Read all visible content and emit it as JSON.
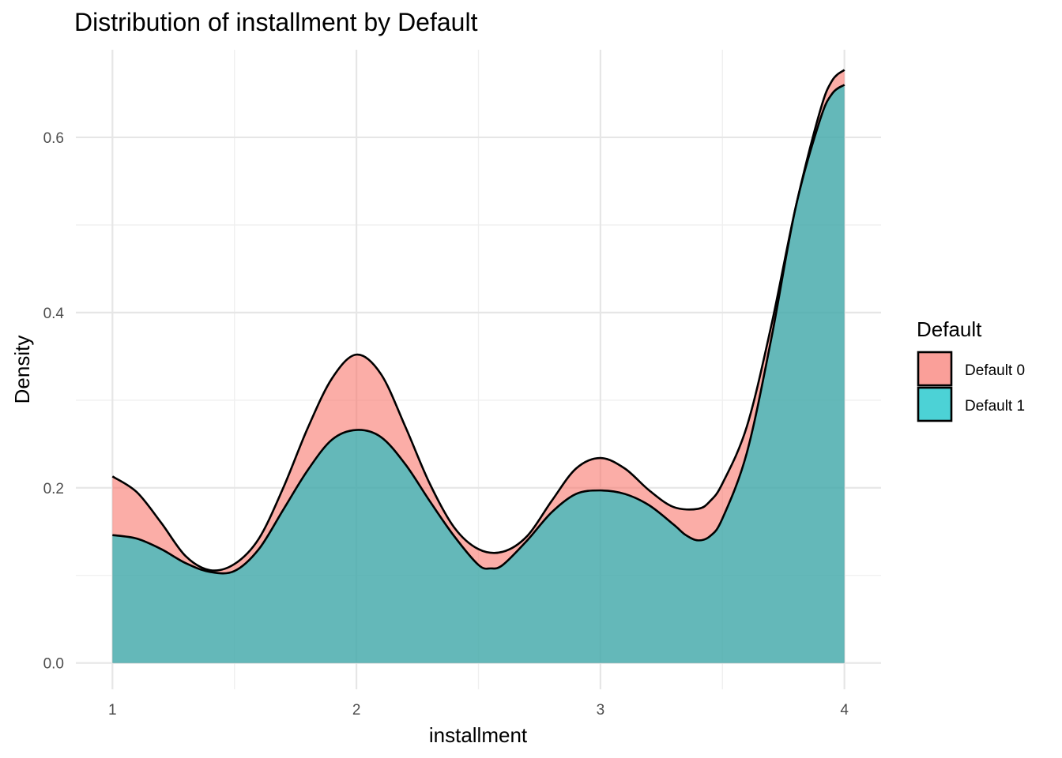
{
  "chart_data": {
    "type": "area",
    "subtype": "density",
    "title": "Distribution of installment by Default",
    "xlabel": "installment",
    "ylabel": "Density",
    "xlim": [
      0.85,
      4.15
    ],
    "ylim": [
      -0.03,
      0.7
    ],
    "x_ticks": [
      1,
      2,
      3,
      4
    ],
    "x_tick_labels": [
      "1",
      "2",
      "3",
      "4"
    ],
    "y_ticks": [
      0.0,
      0.2,
      0.4,
      0.6
    ],
    "y_tick_labels": [
      "0.0",
      "0.2",
      "0.4",
      "0.6"
    ],
    "grid": true,
    "legend": {
      "title": "Default",
      "position": "right",
      "entries": [
        "Default 0",
        "Default 1"
      ]
    },
    "series": [
      {
        "name": "Default 0",
        "color": "#F8766D",
        "fill_opacity": 0.6,
        "points": [
          [
            1.0,
            0.213
          ],
          [
            1.1,
            0.195
          ],
          [
            1.2,
            0.16
          ],
          [
            1.3,
            0.122
          ],
          [
            1.4,
            0.106
          ],
          [
            1.5,
            0.113
          ],
          [
            1.6,
            0.142
          ],
          [
            1.7,
            0.2
          ],
          [
            1.8,
            0.268
          ],
          [
            1.9,
            0.325
          ],
          [
            2.0,
            0.352
          ],
          [
            2.1,
            0.33
          ],
          [
            2.2,
            0.27
          ],
          [
            2.3,
            0.205
          ],
          [
            2.4,
            0.155
          ],
          [
            2.5,
            0.13
          ],
          [
            2.6,
            0.127
          ],
          [
            2.7,
            0.145
          ],
          [
            2.8,
            0.185
          ],
          [
            2.9,
            0.222
          ],
          [
            3.0,
            0.234
          ],
          [
            3.1,
            0.222
          ],
          [
            3.2,
            0.197
          ],
          [
            3.3,
            0.178
          ],
          [
            3.4,
            0.176
          ],
          [
            3.45,
            0.185
          ],
          [
            3.5,
            0.205
          ],
          [
            3.6,
            0.27
          ],
          [
            3.7,
            0.385
          ],
          [
            3.8,
            0.52
          ],
          [
            3.9,
            0.63
          ],
          [
            3.95,
            0.665
          ],
          [
            4.0,
            0.677
          ]
        ]
      },
      {
        "name": "Default 1",
        "color": "#00BFC4",
        "fill_opacity": 0.6,
        "points": [
          [
            1.0,
            0.146
          ],
          [
            1.1,
            0.142
          ],
          [
            1.2,
            0.13
          ],
          [
            1.3,
            0.114
          ],
          [
            1.4,
            0.104
          ],
          [
            1.5,
            0.105
          ],
          [
            1.6,
            0.13
          ],
          [
            1.7,
            0.175
          ],
          [
            1.8,
            0.22
          ],
          [
            1.9,
            0.255
          ],
          [
            2.0,
            0.266
          ],
          [
            2.1,
            0.258
          ],
          [
            2.2,
            0.227
          ],
          [
            2.3,
            0.185
          ],
          [
            2.4,
            0.145
          ],
          [
            2.5,
            0.112
          ],
          [
            2.55,
            0.108
          ],
          [
            2.6,
            0.112
          ],
          [
            2.7,
            0.14
          ],
          [
            2.8,
            0.172
          ],
          [
            2.9,
            0.193
          ],
          [
            3.0,
            0.197
          ],
          [
            3.1,
            0.193
          ],
          [
            3.2,
            0.18
          ],
          [
            3.3,
            0.158
          ],
          [
            3.35,
            0.146
          ],
          [
            3.4,
            0.14
          ],
          [
            3.45,
            0.145
          ],
          [
            3.5,
            0.165
          ],
          [
            3.6,
            0.24
          ],
          [
            3.7,
            0.37
          ],
          [
            3.8,
            0.52
          ],
          [
            3.9,
            0.62
          ],
          [
            3.95,
            0.65
          ],
          [
            4.0,
            0.66
          ]
        ]
      }
    ]
  }
}
